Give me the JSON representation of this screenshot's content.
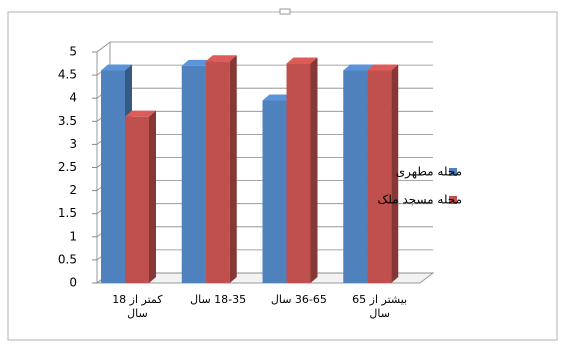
{
  "chart_data": {
    "type": "bar3d",
    "categories": [
      "کمتر از 18 سال",
      "18-35 سال",
      "36-65 سال",
      "بیشتر از 65 سال"
    ],
    "series": [
      {
        "name": "محله مطهری",
        "color": "#4f81bd",
        "values": [
          4.6,
          4.7,
          3.95,
          4.6
        ]
      },
      {
        "name": "محله مسجد ملک",
        "color": "#c0504d",
        "values": [
          3.6,
          4.8,
          4.75,
          4.6
        ]
      }
    ],
    "ylim": [
      0,
      5
    ],
    "yticks": [
      0,
      0.5,
      1,
      1.5,
      2,
      2.5,
      3,
      3.5,
      4,
      4.5,
      5
    ],
    "grid": true,
    "legend": "right"
  }
}
